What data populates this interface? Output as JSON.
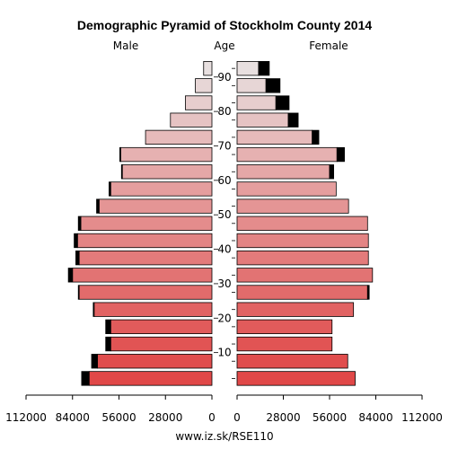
{
  "chart_data": {
    "type": "bar",
    "orientation": "horizontal-pyramid",
    "title": "Demographic Pyramid of Stockholm County 2014",
    "left_label": "Male",
    "center_label": "Age",
    "right_label": "Female",
    "source": "www.iz.sk/RSE110",
    "xlim": [
      0,
      112000
    ],
    "x_ticks": [
      "112000",
      "84000",
      "56000",
      "28000",
      "0",
      "0",
      "28000",
      "56000",
      "84000",
      "112000"
    ],
    "age_tick_labels": [
      "10",
      "20",
      "30",
      "40",
      "50",
      "60",
      "70",
      "80",
      "90"
    ],
    "age_groups": [
      "0-4",
      "5-9",
      "10-14",
      "15-19",
      "20-24",
      "25-29",
      "30-34",
      "35-39",
      "40-44",
      "45-49",
      "50-54",
      "55-59",
      "60-64",
      "65-69",
      "70-74",
      "75-79",
      "80-84",
      "85-89",
      "90+"
    ],
    "series": [
      {
        "name": "Male",
        "values": [
          74000,
          69000,
          61000,
          61000,
          71000,
          80000,
          84000,
          80000,
          81000,
          79000,
          68000,
          61000,
          54000,
          55000,
          40000,
          25000,
          16000,
          10000,
          5000
        ],
        "foreign": [
          4500,
          3500,
          3000,
          3000,
          500,
          500,
          2500,
          2000,
          2000,
          1500,
          1500,
          1000,
          500,
          500,
          0,
          0,
          0,
          0,
          0
        ]
      },
      {
        "name": "Female",
        "values": [
          71500,
          67000,
          57500,
          57500,
          70500,
          79000,
          82000,
          79500,
          79500,
          79000,
          67500,
          60000,
          56000,
          60500,
          45500,
          31000,
          23500,
          17500,
          13000
        ],
        "foreign": [
          0,
          0,
          0,
          0,
          0,
          1000,
          0,
          0,
          0,
          0,
          0,
          0,
          2500,
          4500,
          4000,
          6000,
          8000,
          8500,
          6500
        ]
      }
    ],
    "colors": {
      "bar_young": "#e04848",
      "bar_old": "#e8e0e0",
      "foreign": "#000000",
      "outline": "#000000"
    },
    "grid": false,
    "legend": "none"
  }
}
